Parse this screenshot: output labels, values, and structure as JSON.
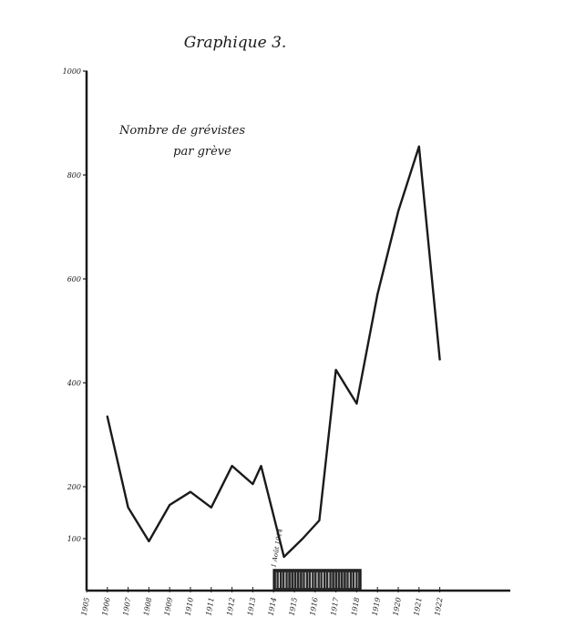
{
  "page": {
    "title": "Graphique 3.",
    "note_line1": "Nombre de grévistes",
    "note_line2": "par grève"
  },
  "chart_data": {
    "type": "line",
    "title": "Graphique 3.",
    "annotation": [
      "Nombre de grévistes",
      "par grève"
    ],
    "xlabel": "",
    "ylabel": "",
    "x_tick_labels": [
      "1905",
      "1906",
      "1907",
      "1908",
      "1909",
      "1910",
      "1911",
      "1912",
      "1913",
      "1914",
      "1915",
      "1916",
      "1917",
      "1918",
      "1919",
      "1920",
      "1921",
      "1922"
    ],
    "y_tick_labels": [
      "100",
      "200",
      "400",
      "600",
      "800",
      "1000"
    ],
    "ylim": [
      0,
      1000
    ],
    "grid": false,
    "series": [
      {
        "x": [
          1906,
          1907,
          1908,
          1909,
          1910,
          1911,
          1912,
          1913,
          1913.4,
          1914.5,
          1915.4,
          1916.2,
          1917,
          1918,
          1919,
          1920,
          1921,
          1922
        ],
        "y": [
          335,
          160,
          95,
          165,
          190,
          160,
          240,
          205,
          240,
          65,
          100,
          135,
          425,
          360,
          570,
          730,
          855,
          445
        ]
      }
    ],
    "war_period": {
      "from": 1914,
      "to": 1918.2
    },
    "event_label": "1 Août 1914",
    "ink_color": "#1a1a1a"
  }
}
